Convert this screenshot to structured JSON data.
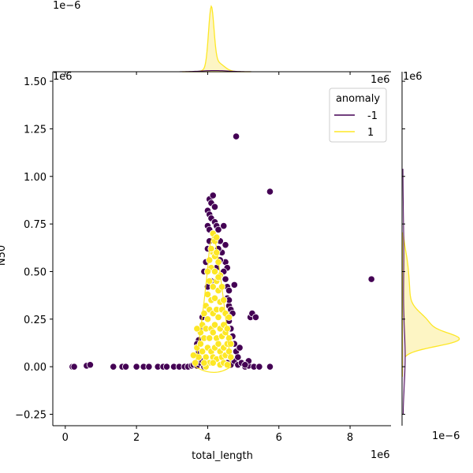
{
  "chart_data": {
    "type": "scatter",
    "kind": "jointplot",
    "hue_title": "anomaly",
    "colors": {
      "-1": "#440154",
      "1": "#fde725",
      "1_fill": "#fdf5c4",
      "-1_fill": "#e8d8ea",
      "edge": "#ffffff"
    },
    "main": {
      "xlabel": "total_length",
      "ylabel": "N50",
      "x_offset_label": "1e6",
      "y_offset_label": "1e6",
      "xlim": [
        -0.35,
        9.15
      ],
      "ylim": [
        -0.31,
        1.55
      ],
      "xticks": [
        0,
        2,
        4,
        6,
        8
      ],
      "xtick_labels": [
        "0",
        "2",
        "4",
        "6",
        "8"
      ],
      "yticks": [
        -0.25,
        0.0,
        0.25,
        0.5,
        0.75,
        1.0,
        1.25,
        1.5
      ],
      "ytick_labels": [
        "−0.25",
        "0.00",
        "0.25",
        "0.50",
        "0.75",
        "1.00",
        "1.25",
        "1.50"
      ]
    },
    "legend": {
      "title": "anomaly",
      "entries": [
        {
          "label": "-1",
          "series": "-1"
        },
        {
          "label": "1",
          "series": "1"
        }
      ],
      "position": "top-right"
    },
    "top_marginal": {
      "offset_label": "1e−6",
      "axis": "x",
      "density_peak_x": 4.1
    },
    "right_marginal": {
      "offset_label": "1e6",
      "bottom_offset_label": "1e−6",
      "axis": "y"
    },
    "series": [
      {
        "name": "-1",
        "points": [
          [
            0.2,
            0.0
          ],
          [
            0.25,
            0.0
          ],
          [
            0.6,
            0.005
          ],
          [
            0.7,
            0.01
          ],
          [
            1.35,
            0.0
          ],
          [
            1.6,
            0.0
          ],
          [
            1.7,
            0.0
          ],
          [
            2.0,
            0.0
          ],
          [
            2.2,
            0.0
          ],
          [
            2.35,
            0.0
          ],
          [
            2.6,
            0.0
          ],
          [
            2.75,
            0.0
          ],
          [
            2.85,
            0.0
          ],
          [
            3.05,
            0.0
          ],
          [
            3.2,
            0.0
          ],
          [
            3.35,
            0.0
          ],
          [
            3.45,
            0.0
          ],
          [
            3.55,
            0.005
          ],
          [
            3.6,
            0.01
          ],
          [
            3.7,
            0.005
          ],
          [
            3.8,
            0.02
          ],
          [
            3.85,
            0.03
          ],
          [
            3.9,
            0.0
          ],
          [
            3.95,
            0.01
          ],
          [
            4.55,
            0.02
          ],
          [
            4.65,
            0.01
          ],
          [
            4.75,
            0.03
          ],
          [
            4.85,
            0.01
          ],
          [
            4.95,
            0.02
          ],
          [
            5.05,
            0.0
          ],
          [
            5.15,
            0.005
          ],
          [
            5.3,
            0.0
          ],
          [
            5.45,
            0.0
          ],
          [
            5.75,
            0.0
          ],
          [
            4.8,
            1.21
          ],
          [
            5.75,
            0.92
          ],
          [
            8.6,
            0.46
          ],
          [
            4.05,
            0.88
          ],
          [
            4.1,
            0.86
          ],
          [
            4.15,
            0.9
          ],
          [
            4.2,
            0.84
          ],
          [
            4.0,
            0.82
          ],
          [
            4.05,
            0.8
          ],
          [
            4.1,
            0.78
          ],
          [
            4.2,
            0.76
          ],
          [
            4.25,
            0.74
          ],
          [
            4.0,
            0.74
          ],
          [
            4.05,
            0.72
          ],
          [
            4.15,
            0.7
          ],
          [
            4.3,
            0.72
          ],
          [
            4.35,
            0.66
          ],
          [
            4.45,
            0.74
          ],
          [
            4.4,
            0.6
          ],
          [
            4.3,
            0.62
          ],
          [
            4.5,
            0.55
          ],
          [
            4.55,
            0.52
          ],
          [
            4.45,
            0.5
          ],
          [
            4.5,
            0.46
          ],
          [
            4.55,
            0.42
          ],
          [
            4.6,
            0.4
          ],
          [
            4.55,
            0.36
          ],
          [
            4.6,
            0.32
          ],
          [
            4.65,
            0.3
          ],
          [
            4.7,
            0.28
          ],
          [
            4.75,
            0.43
          ],
          [
            4.0,
            0.62
          ],
          [
            3.95,
            0.55
          ],
          [
            3.9,
            0.5
          ],
          [
            4.2,
            0.58
          ],
          [
            4.25,
            0.52
          ],
          [
            4.05,
            0.66
          ],
          [
            4.6,
            0.24
          ],
          [
            4.65,
            0.2
          ],
          [
            4.7,
            0.16
          ],
          [
            4.75,
            0.12
          ],
          [
            4.8,
            0.08
          ],
          [
            4.85,
            0.05
          ],
          [
            4.9,
            0.1
          ],
          [
            5.2,
            0.26
          ],
          [
            5.25,
            0.28
          ],
          [
            5.35,
            0.26
          ],
          [
            5.15,
            0.03
          ],
          [
            5.05,
            0.01
          ],
          [
            3.75,
            0.14
          ],
          [
            3.7,
            0.12
          ],
          [
            3.8,
            0.2
          ],
          [
            3.85,
            0.26
          ],
          [
            3.75,
            0.08
          ],
          [
            4.0,
            0.42
          ],
          [
            4.6,
            0.35
          ],
          [
            4.5,
            0.64
          ],
          [
            4.35,
            0.56
          ],
          [
            4.1,
            0.45
          ]
        ]
      },
      {
        "name": "1",
        "points": [
          [
            3.7,
            0.1
          ],
          [
            3.75,
            0.05
          ],
          [
            3.8,
            0.12
          ],
          [
            3.8,
            0.18
          ],
          [
            3.85,
            0.08
          ],
          [
            3.85,
            0.22
          ],
          [
            3.9,
            0.15
          ],
          [
            3.9,
            0.28
          ],
          [
            3.95,
            0.05
          ],
          [
            3.95,
            0.2
          ],
          [
            3.95,
            0.32
          ],
          [
            4.0,
            0.1
          ],
          [
            4.0,
            0.25
          ],
          [
            4.0,
            0.38
          ],
          [
            4.05,
            0.02
          ],
          [
            4.05,
            0.15
          ],
          [
            4.05,
            0.3
          ],
          [
            4.05,
            0.45
          ],
          [
            4.1,
            0.08
          ],
          [
            4.1,
            0.2
          ],
          [
            4.1,
            0.35
          ],
          [
            4.1,
            0.52
          ],
          [
            4.15,
            0.05
          ],
          [
            4.15,
            0.18
          ],
          [
            4.15,
            0.28
          ],
          [
            4.15,
            0.42
          ],
          [
            4.15,
            0.6
          ],
          [
            4.2,
            0.1
          ],
          [
            4.2,
            0.22
          ],
          [
            4.2,
            0.36
          ],
          [
            4.2,
            0.5
          ],
          [
            4.2,
            0.66
          ],
          [
            4.25,
            0.04
          ],
          [
            4.25,
            0.15
          ],
          [
            4.25,
            0.3
          ],
          [
            4.25,
            0.45
          ],
          [
            4.3,
            0.12
          ],
          [
            4.3,
            0.26
          ],
          [
            4.3,
            0.4
          ],
          [
            4.3,
            0.55
          ],
          [
            4.35,
            0.08
          ],
          [
            4.35,
            0.2
          ],
          [
            4.35,
            0.34
          ],
          [
            4.35,
            0.48
          ],
          [
            4.4,
            0.05
          ],
          [
            4.4,
            0.16
          ],
          [
            4.4,
            0.3
          ],
          [
            4.4,
            0.42
          ],
          [
            4.45,
            0.1
          ],
          [
            4.45,
            0.22
          ],
          [
            4.45,
            0.35
          ],
          [
            4.5,
            0.06
          ],
          [
            4.5,
            0.18
          ],
          [
            4.5,
            0.28
          ],
          [
            4.55,
            0.12
          ],
          [
            4.55,
            0.2
          ],
          [
            4.6,
            0.08
          ],
          [
            4.6,
            0.15
          ],
          [
            4.65,
            0.05
          ],
          [
            4.65,
            0.12
          ],
          [
            3.65,
            0.02
          ],
          [
            3.7,
            0.2
          ],
          [
            3.6,
            0.06
          ],
          [
            4.1,
            0.62
          ],
          [
            4.15,
            0.7
          ],
          [
            4.2,
            0.58
          ],
          [
            4.25,
            0.68
          ],
          [
            4.05,
            0.56
          ],
          [
            4.0,
            0.5
          ],
          [
            4.25,
            0.6
          ],
          [
            4.3,
            0.47
          ],
          [
            4.15,
            0.02
          ],
          [
            4.35,
            0.01
          ],
          [
            4.45,
            0.02
          ],
          [
            4.55,
            0.01
          ],
          [
            3.95,
            0.0
          ],
          [
            3.9,
            0.02
          ],
          [
            4.6,
            0.26
          ]
        ]
      }
    ]
  }
}
